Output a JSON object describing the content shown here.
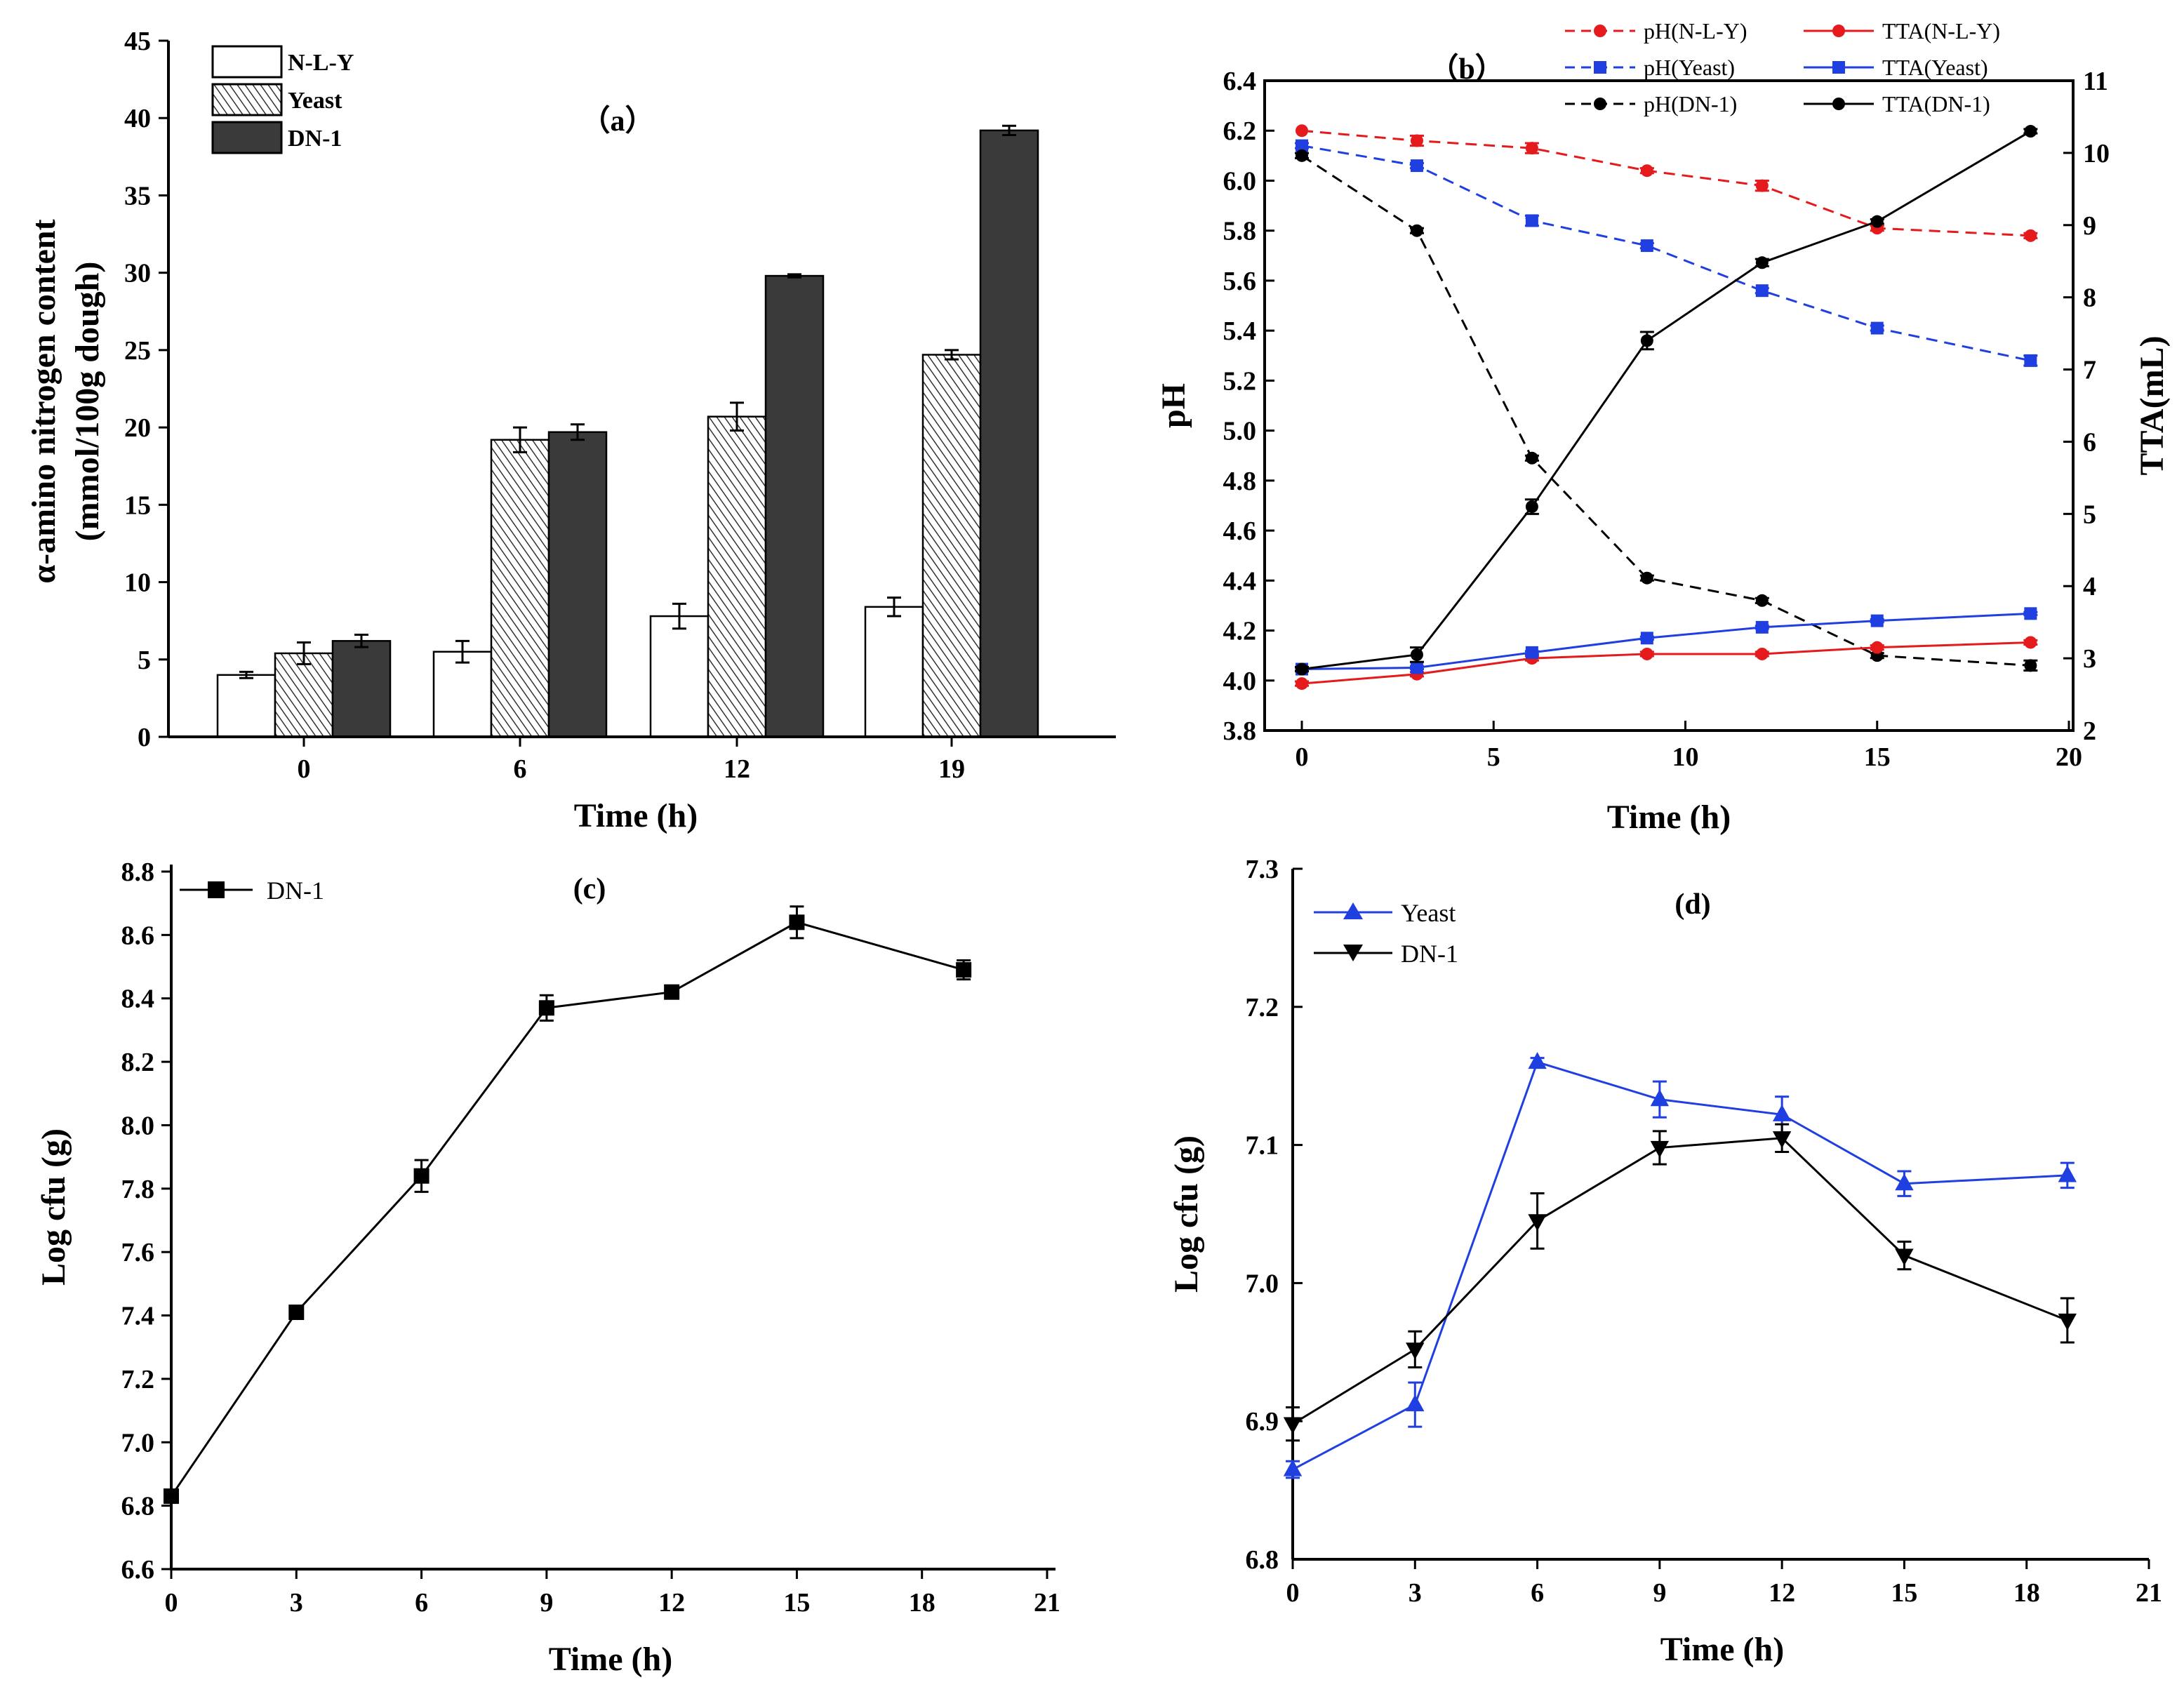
{
  "chart_data": [
    {
      "panel": "a",
      "type": "bar",
      "title": "（a）",
      "xlabel": "Time (h)",
      "ylabel_line1": "α-amino nitrogen content",
      "ylabel_line2": "(mmol/100g dough)",
      "categories": [
        "0",
        "6",
        "12",
        "19"
      ],
      "ylim": [
        0,
        45
      ],
      "yticks": [
        "0",
        "5",
        "10",
        "15",
        "20",
        "25",
        "30",
        "35",
        "40",
        "45"
      ],
      "series": [
        {
          "name": "N-L-Y",
          "values": [
            4.0,
            5.5,
            7.8,
            8.4
          ],
          "errors": [
            0.2,
            0.7,
            0.8,
            0.6
          ],
          "style": "white"
        },
        {
          "name": "Yeast",
          "values": [
            5.4,
            19.2,
            20.7,
            24.7
          ],
          "errors": [
            0.7,
            0.8,
            0.9,
            0.3
          ],
          "style": "hatch"
        },
        {
          "name": "DN-1",
          "values": [
            6.2,
            19.7,
            29.8,
            39.2
          ],
          "errors": [
            0.4,
            0.5,
            0.1,
            0.3
          ],
          "style": "dark"
        }
      ]
    },
    {
      "panel": "b",
      "type": "line",
      "title": "（b）",
      "xlabel": "Time (h)",
      "ylabel": "pH",
      "y2label": "TTA(mL)",
      "xlim": [
        0,
        20
      ],
      "xticks": [
        "0",
        "5",
        "10",
        "15",
        "20"
      ],
      "ylim": [
        3.8,
        6.4
      ],
      "yticks": [
        "3.8",
        "4.0",
        "4.2",
        "4.4",
        "4.6",
        "4.8",
        "5.0",
        "5.2",
        "5.4",
        "5.6",
        "5.8",
        "6.0",
        "6.2",
        "6.4"
      ],
      "y2lim": [
        2,
        11
      ],
      "y2ticks": [
        "2",
        "3",
        "4",
        "5",
        "6",
        "7",
        "8",
        "9",
        "10",
        "11"
      ],
      "x": [
        0,
        3,
        6,
        9,
        12,
        15,
        19
      ],
      "series": [
        {
          "name": "pH(N-L-Y)",
          "axis": "left",
          "dash": true,
          "color": "#e41a1c",
          "marker": "circle",
          "values": [
            6.2,
            6.16,
            6.13,
            6.04,
            5.98,
            5.81,
            5.78
          ],
          "errors": [
            0,
            0.02,
            0.02,
            0.01,
            0.02,
            0.01,
            0.01
          ]
        },
        {
          "name": "pH(Yeast)",
          "axis": "left",
          "dash": true,
          "color": "#1f3fe0",
          "marker": "square",
          "values": [
            6.14,
            6.06,
            5.84,
            5.74,
            5.56,
            5.41,
            5.28
          ],
          "errors": [
            0.01,
            0.01,
            0.02,
            0.01,
            0.01,
            0.01,
            0.02
          ]
        },
        {
          "name": "pH(DN-1)",
          "axis": "left",
          "dash": true,
          "color": "#000000",
          "marker": "circle",
          "values": [
            6.1,
            5.8,
            4.89,
            4.41,
            4.32,
            4.1,
            4.06
          ],
          "errors": [
            0.01,
            0.01,
            0.01,
            0.01,
            0.01,
            0.01,
            0.02
          ]
        },
        {
          "name": "TTA(N-L-Y)",
          "axis": "right",
          "dash": false,
          "color": "#e41a1c",
          "marker": "circle",
          "values": [
            2.65,
            2.78,
            3.0,
            3.06,
            3.06,
            3.15,
            3.22
          ],
          "errors": [
            0.03,
            0.03,
            0.03,
            0.03,
            0.03,
            0.03,
            0.03
          ]
        },
        {
          "name": "TTA(Yeast)",
          "axis": "right",
          "dash": false,
          "color": "#1f3fe0",
          "marker": "square",
          "values": [
            2.85,
            2.87,
            3.08,
            3.28,
            3.43,
            3.52,
            3.62
          ],
          "errors": [
            0.02,
            0.02,
            0.02,
            0.02,
            0.02,
            0.02,
            0.02
          ]
        },
        {
          "name": "TTA(DN-1)",
          "axis": "right",
          "dash": false,
          "color": "#000000",
          "marker": "circle",
          "values": [
            2.85,
            3.05,
            5.1,
            7.4,
            8.48,
            9.05,
            10.3
          ],
          "errors": [
            0.03,
            0.1,
            0.1,
            0.12,
            0.05,
            0.03,
            0.03
          ]
        }
      ]
    },
    {
      "panel": "c",
      "type": "line",
      "title": "(c)",
      "xlabel": "Time (h)",
      "ylabel": "Log cfu (g)",
      "xlim": [
        0,
        21
      ],
      "xticks": [
        "0",
        "3",
        "6",
        "9",
        "12",
        "15",
        "18",
        "21"
      ],
      "ylim": [
        6.6,
        8.8
      ],
      "yticks": [
        "6.6",
        "6.8",
        "7.0",
        "7.2",
        "7.4",
        "7.6",
        "7.8",
        "8.0",
        "8.2",
        "8.4",
        "8.6",
        "8.8"
      ],
      "x": [
        0,
        3,
        6,
        9,
        12,
        15,
        19
      ],
      "series": [
        {
          "name": "DN-1",
          "color": "#000000",
          "marker": "square",
          "values": [
            6.83,
            7.41,
            7.84,
            8.37,
            8.42,
            8.64,
            8.49
          ],
          "errors": [
            0.02,
            0.02,
            0.05,
            0.04,
            0.02,
            0.05,
            0.03
          ]
        }
      ]
    },
    {
      "panel": "d",
      "type": "line",
      "title": "(d)",
      "xlabel": "Time (h)",
      "ylabel": "Log cfu (g)",
      "xlim": [
        0,
        21
      ],
      "xticks": [
        "0",
        "3",
        "6",
        "9",
        "12",
        "15",
        "18",
        "21"
      ],
      "ylim": [
        6.8,
        7.3
      ],
      "yticks": [
        "6.8",
        "6.9",
        "7.0",
        "7.1",
        "7.2",
        "7.3"
      ],
      "x": [
        0,
        3,
        6,
        9,
        12,
        15,
        19
      ],
      "series": [
        {
          "name": "Yeast",
          "color": "#1f3fe0",
          "marker": "triangle-up",
          "values": [
            6.865,
            6.912,
            7.16,
            7.133,
            7.122,
            7.072,
            7.078
          ],
          "errors": [
            0.006,
            0.016,
            0.003,
            0.013,
            0.013,
            0.009,
            0.009
          ]
        },
        {
          "name": "DN-1",
          "color": "#000000",
          "marker": "triangle-down",
          "values": [
            6.898,
            6.952,
            7.045,
            7.098,
            7.105,
            7.02,
            6.973
          ],
          "errors": [
            0.012,
            0.013,
            0.02,
            0.012,
            0.01,
            0.01,
            0.016
          ]
        }
      ]
    }
  ]
}
